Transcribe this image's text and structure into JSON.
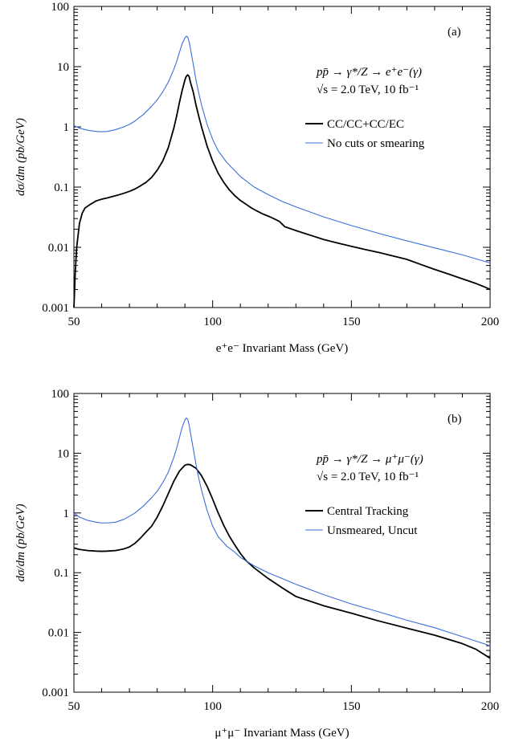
{
  "chart_data": [
    {
      "type": "line",
      "panel_label": "(a)",
      "xlabel": "e⁺e⁻ Invariant Mass (GeV)",
      "ylabel": "dσ/dm (pb/GeV)",
      "xlim": [
        50,
        200
      ],
      "ylim": [
        0.001,
        100
      ],
      "yscale": "log",
      "xticks": [
        "50",
        "100",
        "150",
        "200"
      ],
      "yticks": [
        "0.001",
        "0.01",
        "0.1",
        "1",
        "10",
        "100"
      ],
      "annotation_lines": [
        "pp̄ → γ*/Z → e⁺e⁻(γ)",
        "√s = 2.0 TeV, 10 fb⁻¹"
      ],
      "legend_position": "right",
      "series": [
        {
          "name": "CC/CC+CC/EC",
          "color": "#000000",
          "x": [
            50,
            50.5,
            51,
            52,
            53,
            54,
            56,
            58,
            60,
            62,
            64,
            66,
            68,
            70,
            72,
            74,
            76,
            78,
            80,
            82,
            84,
            86,
            87,
            88,
            89,
            90,
            90.5,
            91,
            91.5,
            92,
            93,
            94,
            95,
            96,
            98,
            100,
            102,
            104,
            106,
            108,
            110,
            112,
            114,
            116,
            118,
            120,
            122,
            124,
            126,
            130,
            135,
            140,
            145,
            150,
            155,
            160,
            165,
            170,
            175,
            180,
            185,
            190,
            195,
            198,
            200
          ],
          "y": [
            0.001,
            0.004,
            0.01,
            0.025,
            0.037,
            0.045,
            0.052,
            0.059,
            0.063,
            0.066,
            0.07,
            0.074,
            0.079,
            0.085,
            0.093,
            0.105,
            0.12,
            0.145,
            0.19,
            0.27,
            0.45,
            0.95,
            1.5,
            2.5,
            4.0,
            6.0,
            6.9,
            7.3,
            6.9,
            5.5,
            3.8,
            2.3,
            1.5,
            1.0,
            0.48,
            0.27,
            0.17,
            0.12,
            0.09,
            0.072,
            0.06,
            0.052,
            0.045,
            0.04,
            0.036,
            0.033,
            0.03,
            0.027,
            0.022,
            0.019,
            0.016,
            0.0135,
            0.0118,
            0.0104,
            0.0092,
            0.0082,
            0.0072,
            0.0063,
            0.0052,
            0.0043,
            0.0036,
            0.003,
            0.0025,
            0.0022,
            0.002
          ]
        },
        {
          "name": "No cuts or smearing",
          "color": "#3a6fd8",
          "x": [
            50,
            52,
            55,
            58,
            60,
            62,
            65,
            68,
            70,
            72,
            75,
            78,
            80,
            82,
            84,
            86,
            87,
            88,
            89,
            90,
            90.5,
            91,
            91.5,
            92,
            93,
            94,
            95,
            96,
            98,
            100,
            102,
            105,
            110,
            115,
            120,
            125,
            130,
            140,
            150,
            160,
            170,
            180,
            190,
            200
          ],
          "y": [
            1.05,
            0.95,
            0.88,
            0.84,
            0.83,
            0.84,
            0.9,
            1.0,
            1.1,
            1.25,
            1.6,
            2.2,
            2.8,
            3.8,
            5.5,
            9.0,
            12,
            17,
            24,
            30,
            32,
            31,
            26,
            20,
            11,
            6.0,
            3.6,
            2.3,
            1.1,
            0.62,
            0.4,
            0.26,
            0.15,
            0.1,
            0.075,
            0.058,
            0.047,
            0.032,
            0.023,
            0.017,
            0.0128,
            0.0098,
            0.0075,
            0.0055
          ]
        }
      ]
    },
    {
      "type": "line",
      "panel_label": "(b)",
      "xlabel": "μ⁺μ⁻ Invariant Mass (GeV)",
      "ylabel": "dσ/dm (pb/GeV)",
      "xlim": [
        50,
        200
      ],
      "ylim": [
        0.001,
        100
      ],
      "yscale": "log",
      "xticks": [
        "50",
        "100",
        "150",
        "200"
      ],
      "yticks": [
        "0.001",
        "0.01",
        "0.1",
        "1",
        "10",
        "100"
      ],
      "annotation_lines": [
        "pp̄ → γ*/Z → μ⁺μ⁻(γ)",
        "√s = 2.0 TeV, 10 fb⁻¹"
      ],
      "legend_position": "right",
      "series": [
        {
          "name": "Central Tracking",
          "color": "#000000",
          "x": [
            50,
            52,
            55,
            58,
            60,
            62,
            65,
            68,
            70,
            72,
            74,
            76,
            78,
            80,
            82,
            84,
            86,
            88,
            90,
            91,
            92,
            94,
            96,
            98,
            100,
            102,
            104,
            106,
            108,
            110,
            112,
            115,
            120,
            125,
            130,
            140,
            150,
            160,
            170,
            180,
            190,
            195,
            200
          ],
          "y": [
            0.26,
            0.245,
            0.235,
            0.23,
            0.228,
            0.23,
            0.235,
            0.25,
            0.27,
            0.31,
            0.38,
            0.48,
            0.6,
            0.85,
            1.3,
            2.1,
            3.4,
            5.0,
            6.3,
            6.5,
            6.4,
            5.6,
            4.2,
            2.8,
            1.7,
            1.0,
            0.62,
            0.41,
            0.29,
            0.21,
            0.16,
            0.12,
            0.08,
            0.056,
            0.04,
            0.028,
            0.021,
            0.0155,
            0.0118,
            0.009,
            0.0065,
            0.0052,
            0.0037
          ]
        },
        {
          "name": "Unsmeared, Uncut",
          "color": "#3a6fd8",
          "x": [
            50,
            52,
            55,
            58,
            60,
            62,
            65,
            68,
            70,
            72,
            75,
            78,
            80,
            82,
            84,
            86,
            87,
            88,
            89,
            90,
            90.5,
            91,
            91.5,
            92,
            93,
            94,
            95,
            96,
            98,
            100,
            102,
            105,
            108,
            110,
            115,
            120,
            125,
            130,
            140,
            150,
            160,
            170,
            180,
            190,
            200
          ],
          "y": [
            1.0,
            0.85,
            0.75,
            0.7,
            0.68,
            0.68,
            0.7,
            0.78,
            0.88,
            1.0,
            1.3,
            1.8,
            2.3,
            3.2,
            4.8,
            8.5,
            12,
            18,
            27,
            36,
            39,
            37,
            30,
            22,
            12,
            6.5,
            3.8,
            2.4,
            1.1,
            0.6,
            0.4,
            0.28,
            0.22,
            0.18,
            0.13,
            0.1,
            0.08,
            0.064,
            0.043,
            0.03,
            0.022,
            0.016,
            0.012,
            0.0085,
            0.006
          ]
        }
      ]
    }
  ]
}
